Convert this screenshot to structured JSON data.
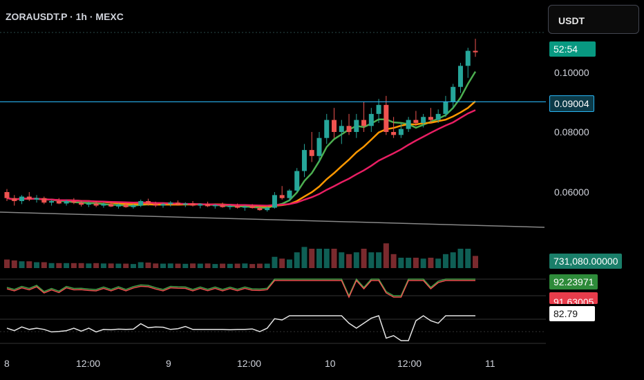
{
  "header": {
    "symbol": "ZORAUSDT.P · 1h · MEXC"
  },
  "currency_button": {
    "label": "USDT"
  },
  "price_axis": {
    "countdown": "52:54",
    "ticks": [
      "0.10000",
      "0.08000",
      "0.06000"
    ],
    "crosshair_price": "0.09004"
  },
  "indicator_tags": {
    "volume": "731,080.00000",
    "osc_green": "92.23971",
    "osc_red": "91.63005",
    "rsi": "82.79"
  },
  "time_axis": {
    "labels": [
      "8",
      "12:00",
      "9",
      "12:00",
      "10",
      "12:00",
      "11"
    ]
  },
  "colors": {
    "up": "#26a69a",
    "down": "#ef5350",
    "crosshair": "#29b6f6",
    "ma_fast": "#4caf50",
    "ma_mid": "#ff9800",
    "ma_slow": "#e91e63",
    "trendline": "#888888",
    "rsi": "#e6e6e6"
  },
  "chart_data": {
    "type": "candlestick",
    "title": "ZORAUSDT.P · 1h · MEXC",
    "x_range": [
      "8",
      "11"
    ],
    "y_ticks": [
      0.06,
      0.08,
      0.1
    ],
    "current_price_line": 0.09004,
    "shape": "price consolidates near 0.056 from day 8 through late day 9, then breaks out sharply after 18:00 on day 9, rallying to about 0.105 by late day 10",
    "candles": [
      [
        0.06,
        0.061,
        0.057,
        0.058
      ],
      [
        0.058,
        0.059,
        0.0555,
        0.057
      ],
      [
        0.057,
        0.059,
        0.056,
        0.0585
      ],
      [
        0.0585,
        0.06,
        0.057,
        0.0575
      ],
      [
        0.0575,
        0.059,
        0.0565,
        0.058
      ],
      [
        0.058,
        0.0585,
        0.056,
        0.0565
      ],
      [
        0.0565,
        0.0575,
        0.0555,
        0.057
      ],
      [
        0.057,
        0.058,
        0.056,
        0.0562
      ],
      [
        0.0562,
        0.0575,
        0.0555,
        0.057
      ],
      [
        0.057,
        0.058,
        0.056,
        0.0565
      ],
      [
        0.0565,
        0.0572,
        0.0552,
        0.0558
      ],
      [
        0.0558,
        0.0568,
        0.055,
        0.0562
      ],
      [
        0.0562,
        0.057,
        0.055,
        0.0555
      ],
      [
        0.0555,
        0.0566,
        0.0548,
        0.056
      ],
      [
        0.056,
        0.0568,
        0.055,
        0.0552
      ],
      [
        0.0552,
        0.0562,
        0.0545,
        0.0558
      ],
      [
        0.0558,
        0.0565,
        0.0548,
        0.055
      ],
      [
        0.055,
        0.056,
        0.0545,
        0.0556
      ],
      [
        0.0556,
        0.0575,
        0.055,
        0.057
      ],
      [
        0.057,
        0.0578,
        0.0555,
        0.056
      ],
      [
        0.056,
        0.0568,
        0.055,
        0.0555
      ],
      [
        0.0555,
        0.0565,
        0.0548,
        0.056
      ],
      [
        0.056,
        0.057,
        0.0552,
        0.0565
      ],
      [
        0.0565,
        0.0572,
        0.0555,
        0.0558
      ],
      [
        0.0558,
        0.0566,
        0.055,
        0.0562
      ],
      [
        0.0562,
        0.057,
        0.0552,
        0.0555
      ],
      [
        0.0555,
        0.0563,
        0.0546,
        0.056
      ],
      [
        0.056,
        0.0568,
        0.055,
        0.0553
      ],
      [
        0.0553,
        0.056,
        0.0545,
        0.0557
      ],
      [
        0.0557,
        0.0565,
        0.0548,
        0.055
      ],
      [
        0.055,
        0.0558,
        0.0542,
        0.0554
      ],
      [
        0.0554,
        0.0562,
        0.0545,
        0.0548
      ],
      [
        0.0548,
        0.0556,
        0.0538,
        0.0552
      ],
      [
        0.0552,
        0.056,
        0.0545,
        0.0547
      ],
      [
        0.0547,
        0.0555,
        0.0538,
        0.054
      ],
      [
        0.054,
        0.0552,
        0.0535,
        0.0548
      ],
      [
        0.0548,
        0.06,
        0.0545,
        0.059
      ],
      [
        0.059,
        0.062,
        0.0575,
        0.058
      ],
      [
        0.058,
        0.061,
        0.057,
        0.0605
      ],
      [
        0.0605,
        0.068,
        0.06,
        0.067
      ],
      [
        0.067,
        0.076,
        0.065,
        0.074
      ],
      [
        0.074,
        0.08,
        0.07,
        0.072
      ],
      [
        0.072,
        0.08,
        0.07,
        0.078
      ],
      [
        0.078,
        0.086,
        0.076,
        0.084
      ],
      [
        0.084,
        0.088,
        0.078,
        0.08
      ],
      [
        0.08,
        0.084,
        0.076,
        0.082
      ],
      [
        0.082,
        0.086,
        0.079,
        0.08
      ],
      [
        0.08,
        0.086,
        0.078,
        0.084
      ],
      [
        0.084,
        0.09,
        0.08,
        0.082
      ],
      [
        0.082,
        0.088,
        0.08,
        0.086
      ],
      [
        0.086,
        0.091,
        0.083,
        0.089
      ],
      [
        0.089,
        0.092,
        0.079,
        0.08
      ],
      [
        0.08,
        0.085,
        0.078,
        0.079
      ],
      [
        0.079,
        0.083,
        0.078,
        0.081
      ],
      [
        0.081,
        0.085,
        0.08,
        0.084
      ],
      [
        0.084,
        0.087,
        0.082,
        0.083
      ],
      [
        0.083,
        0.086,
        0.0815,
        0.085
      ],
      [
        0.085,
        0.088,
        0.083,
        0.084
      ],
      [
        0.084,
        0.0875,
        0.083,
        0.086
      ],
      [
        0.086,
        0.092,
        0.085,
        0.09
      ],
      [
        0.09,
        0.096,
        0.088,
        0.095
      ],
      [
        0.095,
        0.103,
        0.093,
        0.102
      ],
      [
        0.102,
        0.108,
        0.098,
        0.107
      ],
      [
        0.107,
        0.111,
        0.105,
        0.1065
      ]
    ]
  }
}
